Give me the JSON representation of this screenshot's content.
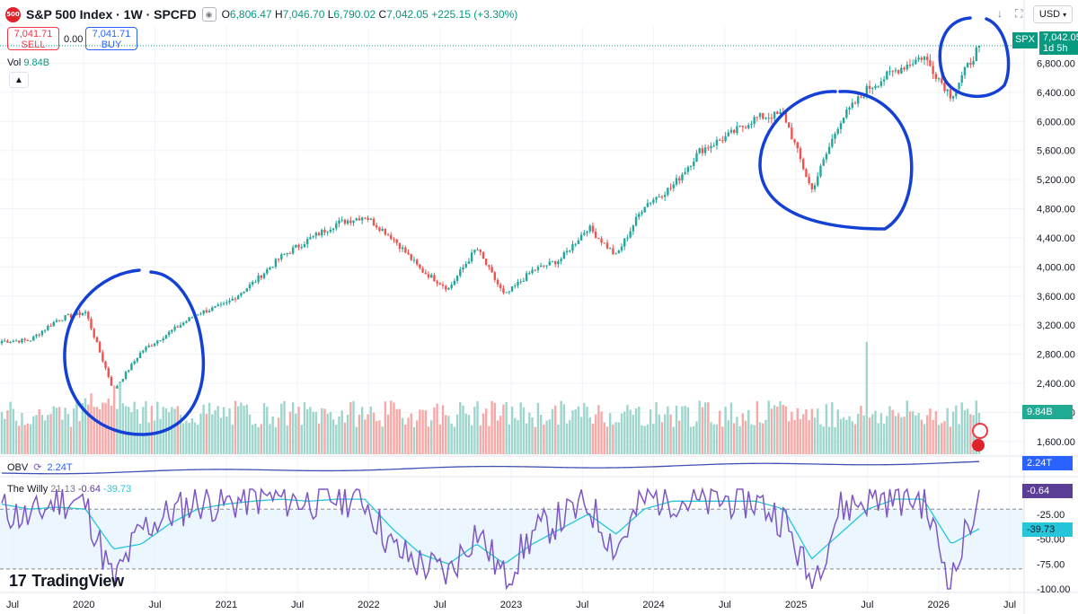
{
  "header": {
    "logo_text": "500",
    "title": "S&P 500 Index · 1W · SPCFD",
    "ohlc": {
      "o_label": "O",
      "o": "6,806.47",
      "h_label": "H",
      "h": "7,046.70",
      "l_label": "L",
      "l": "6,790.02",
      "c_label": "C",
      "c": "7,042.05",
      "change": "+225.15 (+3.30%)"
    },
    "currency": "USD"
  },
  "trade": {
    "sell_price": "7,041.71",
    "sell_label": "SELL",
    "spread": "0.00",
    "buy_price": "7,041.71",
    "buy_label": "BUY"
  },
  "volume": {
    "label": "Vol",
    "value": "9.84B"
  },
  "price_tag": {
    "symbol": "SPX",
    "price": "7,042.05",
    "countdown": "1d 5h"
  },
  "axis_labels": {
    "volume": "9.84B",
    "obv": "2.24T",
    "willy_main": "-0.64",
    "willy_signal": "-39.73"
  },
  "obv": {
    "label": "OBV",
    "value": "2.24T"
  },
  "willy": {
    "label": "The Willy",
    "params": "21 13",
    "main": "-0.64",
    "signal": "-39.73"
  },
  "branding": {
    "name": "TradingView"
  },
  "colors": {
    "up": "#26a69a",
    "down": "#ef5350",
    "annotation": "#1440d6",
    "willy_main": "#7e57c2",
    "willy_signal": "#26c6da",
    "obv": "#2962ff"
  },
  "chart_data": [
    {
      "type": "candlestick",
      "title": "S&P 500 Index · 1W · SPCFD",
      "x_ticks": [
        "Jul",
        "2020",
        "Jul",
        "2021",
        "Jul",
        "2022",
        "Jul",
        "2023",
        "Jul",
        "2024",
        "Jul",
        "2025",
        "Jul",
        "2026",
        "Jul"
      ],
      "y_ticks": [
        "1,600.00",
        "2,000.00",
        "2,400.00",
        "2,800.00",
        "3,200.00",
        "3,600.00",
        "4,000.00",
        "4,400.00",
        "4,800.00",
        "5,200.00",
        "5,600.00",
        "6,000.00",
        "6,400.00",
        "6,800.00"
      ],
      "ylim": [
        1400,
        7300
      ],
      "x": [
        "2019-07",
        "2019-10",
        "2020-01",
        "2020-02",
        "2020-03",
        "2020-04",
        "2020-06",
        "2020-08",
        "2020-10",
        "2021-01",
        "2021-04",
        "2021-07",
        "2021-10",
        "2022-01",
        "2022-03",
        "2022-05",
        "2022-06",
        "2022-08",
        "2022-10",
        "2023-01",
        "2023-04",
        "2023-07",
        "2023-10",
        "2024-01",
        "2024-04",
        "2024-07",
        "2024-10",
        "2025-01",
        "2025-02",
        "2025-04",
        "2025-06",
        "2025-08",
        "2025-10",
        "2026-01",
        "2026-03",
        "2026-04"
      ],
      "close": [
        2980,
        2990,
        3280,
        3380,
        2300,
        2840,
        3100,
        3360,
        3480,
        3780,
        4140,
        4380,
        4600,
        4700,
        4400,
        3960,
        3700,
        4260,
        3600,
        3950,
        4100,
        4550,
        4150,
        4850,
        5100,
        5600,
        5800,
        6050,
        6100,
        5050,
        6000,
        6450,
        6700,
        6900,
        6350,
        7042
      ]
    },
    {
      "type": "area",
      "title": "OBV",
      "values_label": "2.24T"
    },
    {
      "type": "line",
      "title": "The Willy",
      "y_ticks": [
        "-25.00",
        "-50.00",
        "-75.00",
        "-100.00"
      ],
      "ylim": [
        -100,
        0
      ],
      "levels": [
        -20,
        -80
      ],
      "series": [
        {
          "name": "The Willy",
          "values": [
            -20,
            -30,
            -10,
            -15,
            -95,
            -40,
            -25,
            -12,
            -15,
            -8,
            -10,
            -12,
            -8,
            -10,
            -60,
            -75,
            -85,
            -40,
            -90,
            -45,
            -30,
            -15,
            -60,
            -10,
            -8,
            -15,
            -10,
            -12,
            -30,
            -95,
            -20,
            -10,
            -8,
            -10,
            -95,
            -0.64
          ]
        },
        {
          "name": "signal",
          "values": [
            -15,
            -20,
            -18,
            -20,
            -60,
            -55,
            -35,
            -20,
            -15,
            -12,
            -10,
            -12,
            -10,
            -10,
            -40,
            -65,
            -75,
            -55,
            -75,
            -55,
            -40,
            -25,
            -45,
            -20,
            -12,
            -12,
            -12,
            -12,
            -20,
            -70,
            -45,
            -20,
            -10,
            -10,
            -55,
            -39.73
          ]
        }
      ]
    }
  ]
}
